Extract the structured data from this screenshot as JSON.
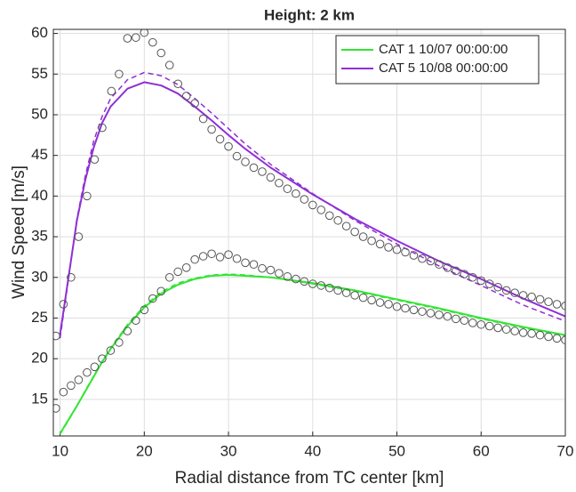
{
  "chart_data": {
    "type": "line",
    "title": "Height: 2 km",
    "xlabel": "Radial distance from TC center [km]",
    "ylabel": "Wind Speed [m/s]",
    "xlim": [
      9.2,
      70
    ],
    "ylim": [
      10.5,
      60.5
    ],
    "xticks": [
      10,
      20,
      30,
      40,
      50,
      60,
      70
    ],
    "yticks": [
      15,
      20,
      25,
      30,
      35,
      40,
      45,
      50,
      55,
      60
    ],
    "grid": true,
    "legend": "upper right",
    "x": [
      10,
      11,
      12,
      13,
      14,
      15,
      16,
      18,
      20,
      22,
      24,
      26,
      28,
      30,
      32,
      35,
      40,
      45,
      50,
      55,
      60,
      65,
      70
    ],
    "series": [
      {
        "name": "CAT 1 10/07 00:00:00",
        "color": "#33e533",
        "values": [
          10.8,
          12.5,
          14.2,
          16,
          17.8,
          19.6,
          21.2,
          24,
          26.3,
          28,
          29.1,
          29.8,
          30.2,
          30.3,
          30.2,
          30,
          29.3,
          28.4,
          27.3,
          26.2,
          25,
          23.9,
          22.9
        ]
      },
      {
        "name": "CAT 5 10/08 00:00:00",
        "color": "#8f2fd6",
        "values": [
          23,
          30,
          37,
          42,
          46,
          49,
          51,
          53.2,
          54,
          53.6,
          52.6,
          51,
          49.3,
          47.5,
          45.8,
          43.5,
          40.2,
          37.2,
          34.5,
          32,
          29.8,
          27.4,
          25.2
        ]
      },
      {
        "color": "#33e533",
        "dash": true,
        "values": [
          10.7,
          12.4,
          14.2,
          16.1,
          17.9,
          19.7,
          21.3,
          24.2,
          26.5,
          28.2,
          29.3,
          29.9,
          30.3,
          30.4,
          30.3,
          30,
          29.2,
          28.3,
          27.2,
          26.1,
          24.9,
          23.8,
          22.8
        ]
      },
      {
        "color": "#8f2fd6",
        "dash": true,
        "values": [
          22.5,
          29.8,
          37.2,
          42.5,
          46.8,
          49.8,
          52,
          54.3,
          55.2,
          54.8,
          53.7,
          52,
          50.2,
          48.3,
          46.4,
          43.9,
          40.3,
          37,
          34.1,
          31.4,
          29,
          26.6,
          24.6
        ]
      },
      {
        "color": "#555555",
        "marker": "circle",
        "x": [
          9.5,
          10.4,
          11.3,
          12.2,
          13.2,
          14.1,
          15,
          16,
          17,
          18,
          19,
          20,
          21,
          22,
          23,
          24,
          25,
          26,
          27,
          28,
          29,
          30,
          31,
          32,
          33,
          34,
          35,
          36,
          37,
          38,
          39,
          40,
          41,
          42,
          43,
          44,
          45,
          46,
          47,
          48,
          49,
          50,
          51,
          52,
          53,
          54,
          55,
          56,
          57,
          58,
          59,
          60,
          61,
          62,
          63,
          64,
          65,
          66,
          67,
          68,
          69,
          70
        ],
        "values": [
          13.9,
          15.9,
          16.7,
          17.4,
          18.3,
          19,
          20,
          21,
          22,
          23.4,
          24.7,
          26,
          27.4,
          28.3,
          30,
          30.7,
          31.2,
          32.2,
          32.6,
          32.9,
          32.5,
          32.8,
          32.3,
          31.8,
          31.6,
          31.1,
          30.9,
          30.5,
          30.1,
          29.8,
          29.5,
          29.2,
          29,
          28.7,
          28.4,
          28.1,
          27.8,
          27.5,
          27.2,
          26.9,
          26.7,
          26.4,
          26.2,
          26,
          25.8,
          25.6,
          25.4,
          25.2,
          24.9,
          24.7,
          24.4,
          24.2,
          24,
          23.8,
          23.6,
          23.4,
          23.2,
          23.1,
          22.9,
          22.7,
          22.5,
          22.3
        ]
      },
      {
        "color": "#555555",
        "marker": "circle",
        "x": [
          9.5,
          10.4,
          11.3,
          12.2,
          13.2,
          14.1,
          15,
          16.1,
          17,
          18,
          19,
          20,
          21,
          22,
          23,
          24,
          25,
          26,
          27,
          28,
          29,
          30,
          31,
          32,
          33,
          34,
          35,
          36,
          37,
          38,
          39,
          40,
          41,
          42,
          43,
          44,
          45,
          46,
          47,
          48,
          49,
          50,
          51,
          52,
          53,
          54,
          55,
          56,
          57,
          58,
          59,
          60,
          61,
          62,
          63,
          64,
          65,
          66,
          67,
          68,
          69,
          70
        ],
        "values": [
          22.8,
          26.7,
          30,
          35,
          40,
          44.5,
          48.4,
          52.9,
          55,
          59.4,
          59.5,
          60.1,
          58.9,
          57.6,
          56.1,
          53.8,
          52.3,
          51.4,
          49.5,
          48.2,
          47,
          46.1,
          44.9,
          44.2,
          43.5,
          43,
          42.3,
          41.6,
          40.9,
          40.3,
          39.6,
          38.9,
          38.3,
          37.6,
          37,
          36.3,
          35.6,
          35,
          34.5,
          34.1,
          33.7,
          33.4,
          33.1,
          32.7,
          32.3,
          32,
          31.6,
          31.2,
          30.8,
          30.4,
          30,
          29.6,
          29.2,
          28.8,
          28.4,
          28.1,
          27.8,
          27.6,
          27.3,
          27,
          26.7,
          26.5
        ]
      }
    ]
  }
}
